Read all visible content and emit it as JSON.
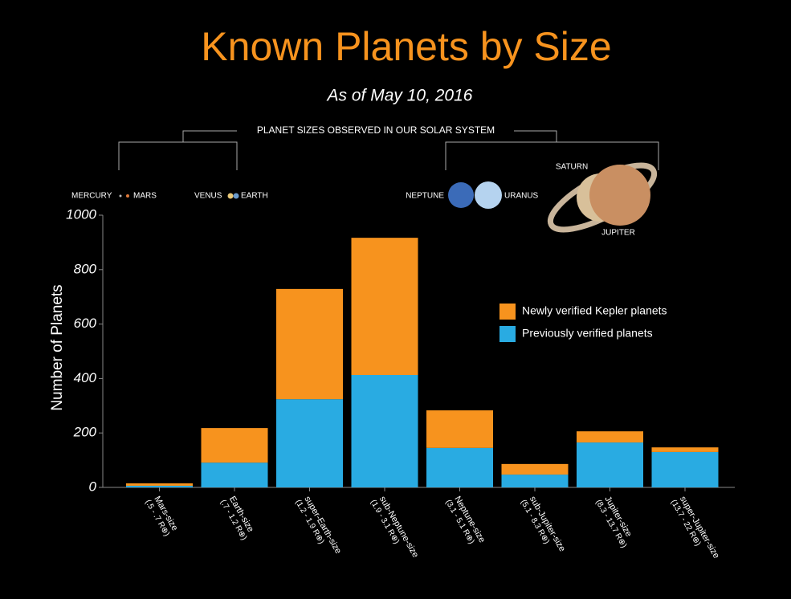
{
  "chart_data": {
    "type": "stacked-bar",
    "title": "Known Planets by Size",
    "subtitle": "As of May 10, 2016",
    "y_label": "Number of Planets",
    "solar_system_label": "PLANET SIZES OBSERVED IN OUR SOLAR SYSTEM",
    "planet_labels": {
      "mercury": "MERCURY",
      "mars": "MARS",
      "venus": "VENUS",
      "earth": "EARTH",
      "neptune": "NEPTUNE",
      "uranus": "URANUS",
      "saturn": "SATURN",
      "jupiter": "JUPITER"
    },
    "categories": [
      "Mars-size",
      "Earth-size",
      "super-Earth-size",
      "sub-Neptune-size",
      "Neptune-size",
      "sub-Jupiter-size",
      "Jupiter-size",
      "super-Jupiter-size"
    ],
    "category_ranges": [
      "(.5 - .7 R⊕)",
      "(.7 - 1.2 R⊕)",
      "(1.2 - 1.9 R⊕)",
      "(1.9 - 3.1 R⊕)",
      "(3.1 - 5.1 R⊕)",
      "(5.1 - 8.3 R⊕)",
      "(8.3 - 13.7 R⊕)",
      "(13.7 - 22 R⊕)"
    ],
    "series": [
      {
        "name": "Previously verified planets",
        "color": "#29abe2",
        "values": [
          6,
          91,
          324,
          413,
          145,
          47,
          165,
          130
        ]
      },
      {
        "name": "Newly verified Kepler planets",
        "color": "#f7931e",
        "values": [
          9,
          127,
          405,
          504,
          138,
          39,
          41,
          17
        ]
      }
    ],
    "ylim": [
      0,
      1000
    ],
    "yticks": [
      0,
      200,
      400,
      600,
      800,
      1000
    ]
  }
}
